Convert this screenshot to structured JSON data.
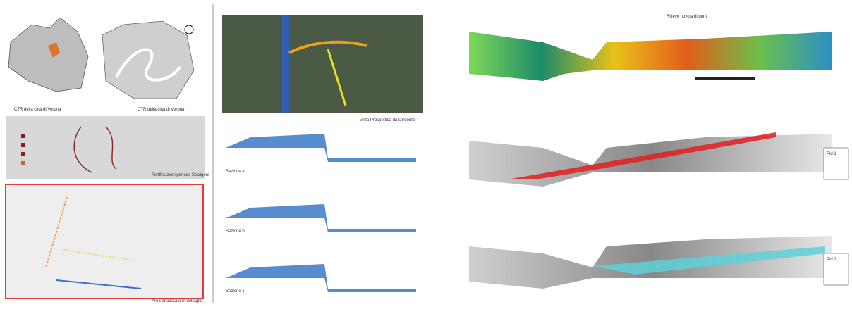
{
  "left": {
    "map1_caption": "CTR della città di Verona",
    "map2_caption": "CTR della città di Verona",
    "legend_caption": "Fortificazioni periodo Scaligero",
    "detail_caption": "Area analizzata in dettaglio"
  },
  "middle": {
    "photo_caption": "Vista Prospettica da sorgente",
    "sections": [
      "Sezione a",
      "Sezione b",
      "Sezione c"
    ]
  },
  "right": {
    "top_label": "Rilievo nuvola di punti",
    "pid1": "Pid 1",
    "pid2": "Pid 2"
  }
}
